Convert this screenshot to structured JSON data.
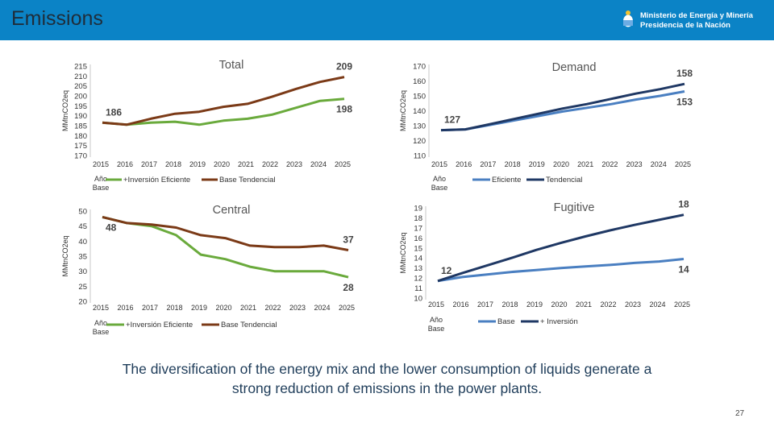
{
  "header": {
    "title": "Emissions",
    "logo_line1": "Ministerio de Energía y Minería",
    "logo_line2": "Presidencia de la Nación"
  },
  "caption": {
    "line1": "The diversification of the energy mix and the lower consumption of liquids generate a",
    "line2": "strong reduction of emissions in the power plants."
  },
  "page_number": "27",
  "colors": {
    "header_bg": "#0b83c6",
    "light_series": "#6aaa3c",
    "dark_series": "#7b3a17",
    "blue_series": "#4a7fc1",
    "navy_series": "#1f3864"
  },
  "chart_data": [
    {
      "type": "line",
      "title": "Total",
      "ylabel": "MMtnCO2eq",
      "x": [
        "2015",
        "2016",
        "2017",
        "2018",
        "2019",
        "2020",
        "2021",
        "2022",
        "2023",
        "2024",
        "2025"
      ],
      "first_tick_sub": [
        "Año",
        "Base"
      ],
      "ylim": [
        170,
        215
      ],
      "yticks": [
        170,
        175,
        180,
        185,
        190,
        195,
        200,
        205,
        210,
        215
      ],
      "series": [
        {
          "name": "+Inversión Eficiente",
          "color": "light",
          "values": [
            186.5,
            185.5,
            186.5,
            187,
            185.5,
            187.5,
            188.5,
            190.5,
            194,
            197.5,
            198.5
          ]
        },
        {
          "name": "Base Tendencial",
          "color": "dark",
          "values": [
            186.5,
            185.5,
            188.5,
            191,
            192,
            194.5,
            196,
            199.5,
            203.5,
            207,
            209.5
          ]
        }
      ],
      "annotations": [
        {
          "text": "186",
          "x": "2015",
          "y": 186.5,
          "pos": "above"
        },
        {
          "text": "209",
          "x": "2025",
          "y": 209.5,
          "pos": "above"
        },
        {
          "text": "198",
          "x": "2025",
          "y": 198.5,
          "pos": "below"
        }
      ]
    },
    {
      "type": "line",
      "title": "Demand",
      "ylabel": "MMtnCO2eq",
      "x": [
        "2015",
        "2016",
        "2017",
        "2018",
        "2019",
        "2020",
        "2021",
        "2022",
        "2023",
        "2024",
        "2025"
      ],
      "first_tick_sub": [
        "Año",
        "Base"
      ],
      "ylim": [
        110,
        170
      ],
      "yticks": [
        110,
        120,
        130,
        140,
        150,
        160,
        170
      ],
      "series": [
        {
          "name": "Eficiente",
          "color": "blue",
          "values": [
            127,
            127.5,
            130.5,
            133.5,
            136.5,
            139.5,
            142,
            144.5,
            147.5,
            150,
            153
          ]
        },
        {
          "name": "Tendencial",
          "color": "navy",
          "values": [
            127,
            127.5,
            131,
            134.5,
            138,
            141.5,
            144.5,
            148,
            151.5,
            154.5,
            158
          ]
        }
      ],
      "annotations": [
        {
          "text": "127",
          "x": "2015",
          "y": 127,
          "pos": "above"
        },
        {
          "text": "158",
          "x": "2025",
          "y": 158,
          "pos": "above"
        },
        {
          "text": "153",
          "x": "2025",
          "y": 153,
          "pos": "below"
        }
      ]
    },
    {
      "type": "line",
      "title": "Central",
      "ylabel": "MMtnCO2eq",
      "x": [
        "2015",
        "2016",
        "2017",
        "2018",
        "2019",
        "2020",
        "2021",
        "2022",
        "2023",
        "2024",
        "2025"
      ],
      "first_tick_sub": [
        "Año",
        "Base"
      ],
      "ylim": [
        20,
        50
      ],
      "yticks": [
        20,
        25,
        30,
        35,
        40,
        45,
        50
      ],
      "series": [
        {
          "name": "+Inversión Eficiente",
          "color": "light",
          "values": [
            48,
            46,
            45,
            42,
            35.5,
            34,
            31.5,
            30,
            30,
            30,
            28
          ]
        },
        {
          "name": "Base Tendencial",
          "color": "dark",
          "values": [
            48,
            46,
            45.5,
            44.5,
            42,
            41,
            38.5,
            38,
            38,
            38.5,
            37
          ]
        }
      ],
      "annotations": [
        {
          "text": "48",
          "x": "2015",
          "y": 48,
          "pos": "below"
        },
        {
          "text": "37",
          "x": "2025",
          "y": 37,
          "pos": "above"
        },
        {
          "text": "28",
          "x": "2025",
          "y": 28,
          "pos": "below"
        }
      ]
    },
    {
      "type": "line",
      "title": "Fugitive",
      "ylabel": "MMtnCO2eq",
      "x": [
        "2015",
        "2016",
        "2017",
        "2018",
        "2019",
        "2020",
        "2021",
        "2022",
        "2023",
        "2024",
        "2025"
      ],
      "first_tick_sub": [
        "Año",
        "Base"
      ],
      "ylim": [
        10,
        19
      ],
      "yticks": [
        10,
        11,
        12,
        13,
        14,
        15,
        16,
        17,
        18,
        19
      ],
      "series": [
        {
          "name": "Base",
          "color": "blue",
          "values": [
            11.7,
            12.1,
            12.35,
            12.6,
            12.8,
            13,
            13.15,
            13.3,
            13.5,
            13.65,
            13.9
          ]
        },
        {
          "name": "+ Inversión",
          "color": "navy",
          "values": [
            11.7,
            12.5,
            13.25,
            14,
            14.8,
            15.5,
            16.15,
            16.75,
            17.3,
            17.8,
            18.3
          ]
        }
      ],
      "annotations": [
        {
          "text": "12",
          "x": "2015",
          "y": 11.7,
          "pos": "above"
        },
        {
          "text": "18",
          "x": "2025",
          "y": 18.3,
          "pos": "above"
        },
        {
          "text": "14",
          "x": "2025",
          "y": 13.9,
          "pos": "below"
        }
      ]
    }
  ]
}
